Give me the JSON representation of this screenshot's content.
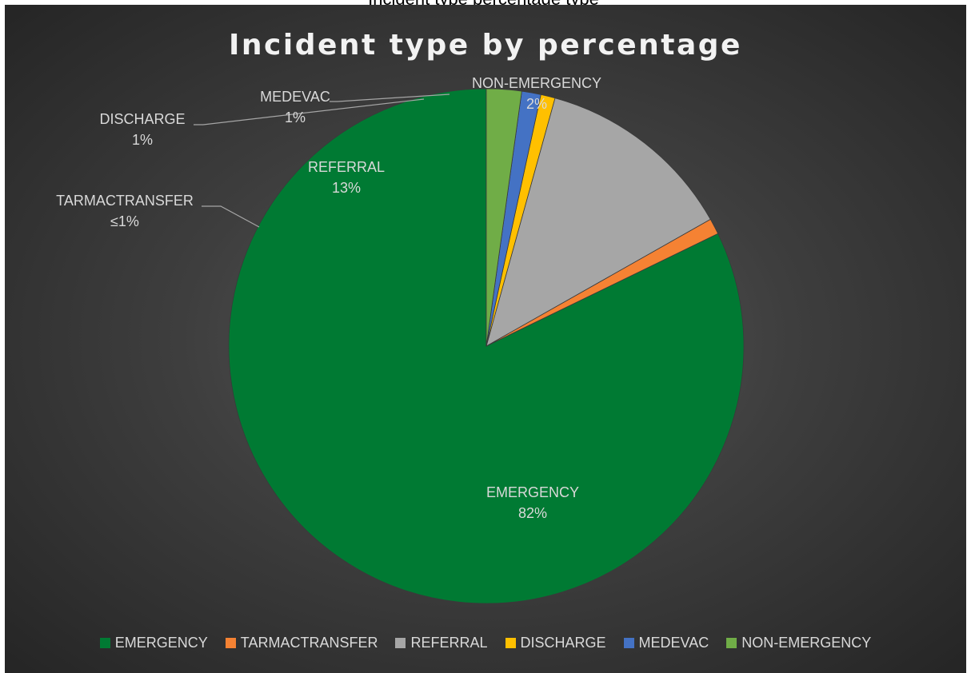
{
  "top_caption": "Incident type percentage type",
  "chart_data": {
    "type": "pie",
    "title": "Incident type by percentage",
    "start_angle_deg": 0,
    "direction": "counterclockwise",
    "slices": [
      {
        "name": "EMERGENCY",
        "value": 82.2,
        "label": "82%",
        "color": "#007a33"
      },
      {
        "name": "TARMACTRANSFER",
        "value": 1.0,
        "label": "≤1%",
        "color": "#f58233"
      },
      {
        "name": "REFERRAL",
        "value": 12.5,
        "label": "13%",
        "color": "#a6a6a6"
      },
      {
        "name": "DISCHARGE",
        "value": 0.9,
        "label": "1%",
        "color": "#ffc000"
      },
      {
        "name": "MEDEVAC",
        "value": 1.2,
        "label": "1%",
        "color": "#4472c4"
      },
      {
        "name": "NON-EMERGENCY",
        "value": 2.2,
        "label": "2%",
        "color": "#70ad47"
      }
    ],
    "legend_position": "bottom",
    "legend": [
      "EMERGENCY",
      "TARMACTRANSFER",
      "REFERRAL",
      "DISCHARGE",
      "MEDEVAC",
      "NON-EMERGENCY"
    ]
  }
}
